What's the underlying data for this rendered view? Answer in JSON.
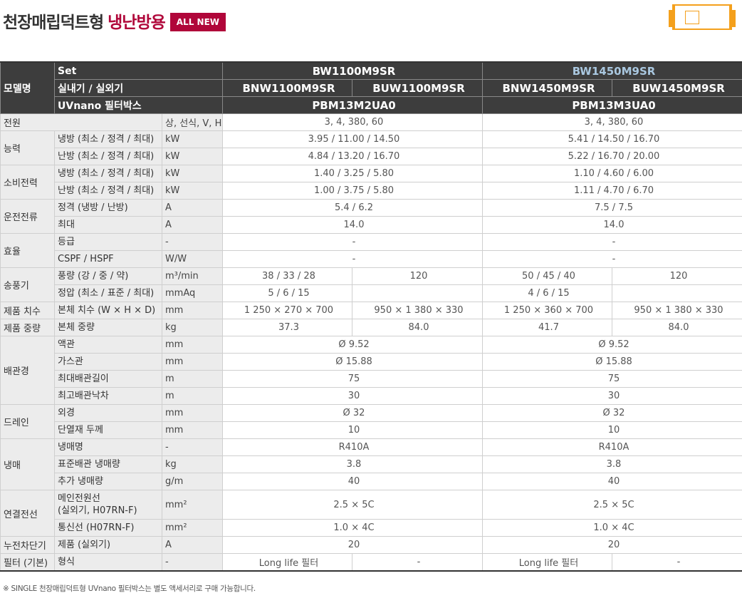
{
  "title": {
    "main": "천장매립덕트형",
    "accent": "냉난방용",
    "badge": "ALL NEW"
  },
  "header": {
    "model_label": "모델명",
    "set_label": "Set",
    "unit_label": "실내기 / 실외기",
    "filter_label": "UVnano 필터박스",
    "set_a": "BW1100M9SR",
    "set_b": "BW1450M9SR",
    "indoor_a": "BNW1100M9SR",
    "outdoor_a": "BUW1100M9SR",
    "indoor_b": "BNW1450M9SR",
    "outdoor_b": "BUW1450M9SR",
    "filter_a": "PBM13M2UA0",
    "filter_b": "PBM13M3UA0"
  },
  "rows": [
    {
      "cat": "전원",
      "item": "",
      "unit": "상, 선식, V, Hz",
      "a": "3, 4, 380, 60",
      "b": "3, 4, 380, 60"
    },
    {
      "cat": "능력",
      "item": "냉방 (최소 / 정격 / 최대)",
      "unit": "kW",
      "a": "3.95 / 11.00 / 14.50",
      "b": "5.41 / 14.50 / 16.70"
    },
    {
      "cat": "",
      "item": "난방 (최소 / 정격 / 최대)",
      "unit": "kW",
      "a": "4.84 / 13.20 / 16.70",
      "b": "5.22 / 16.70 / 20.00"
    },
    {
      "cat": "소비전력",
      "item": "냉방 (최소 / 정격 / 최대)",
      "unit": "kW",
      "a": "1.40 / 3.25 / 5.80",
      "b": "1.10 / 4.60 / 6.00"
    },
    {
      "cat": "",
      "item": "난방 (최소 / 정격 / 최대)",
      "unit": "kW",
      "a": "1.00 / 3.75 / 5.80",
      "b": "1.11 / 4.70 / 6.70"
    },
    {
      "cat": "운전전류",
      "item": "정격 (냉방 / 난방)",
      "unit": "A",
      "a": "5.4 / 6.2",
      "b": "7.5 / 7.5"
    },
    {
      "cat": "",
      "item": "최대",
      "unit": "A",
      "a": "14.0",
      "b": "14.0"
    },
    {
      "cat": "효율",
      "item": "등급",
      "unit": "-",
      "a": "-",
      "b": "-"
    },
    {
      "cat": "",
      "item": "CSPF / HSPF",
      "unit": "W/W",
      "a": "-",
      "b": "-"
    },
    {
      "cat": "송풍기",
      "item": "풍량 (강 / 중 / 약)",
      "unit": "m³/min",
      "a1": "38 / 33 / 28",
      "a2": "120",
      "b1": "50 / 45 / 40",
      "b2": "120"
    },
    {
      "cat": "",
      "item": "정압 (최소 / 표준 / 최대)",
      "unit": "mmAq",
      "a1": "5 / 6 / 15",
      "a2": "",
      "b1": "4 / 6 / 15",
      "b2": ""
    },
    {
      "cat": "제품 치수",
      "item": "본체 치수 (W × H × D)",
      "unit": "mm",
      "a1": "1 250 × 270 × 700",
      "a2": "950 × 1 380 × 330",
      "b1": "1 250 × 360 × 700",
      "b2": "950 × 1 380 × 330"
    },
    {
      "cat": "제품 중량",
      "item": "본체 중량",
      "unit": "kg",
      "a1": "37.3",
      "a2": "84.0",
      "b1": "41.7",
      "b2": "84.0"
    },
    {
      "cat": "배관경",
      "item": "액관",
      "unit": "mm",
      "a": "Ø 9.52",
      "b": "Ø 9.52"
    },
    {
      "cat": "",
      "item": "가스관",
      "unit": "mm",
      "a": "Ø 15.88",
      "b": "Ø 15.88"
    },
    {
      "cat": "",
      "item": "최대배관길이",
      "unit": "m",
      "a": "75",
      "b": "75"
    },
    {
      "cat": "",
      "item": "최고배관낙차",
      "unit": "m",
      "a": "30",
      "b": "30"
    },
    {
      "cat": "드레인",
      "item": "외경",
      "unit": "mm",
      "a": "Ø 32",
      "b": "Ø 32"
    },
    {
      "cat": "",
      "item": "단열재 두께",
      "unit": "mm",
      "a": "10",
      "b": "10"
    },
    {
      "cat": "냉매",
      "item": "냉매명",
      "unit": "-",
      "a": "R410A",
      "b": "R410A"
    },
    {
      "cat": "",
      "item": "표준배관 냉매량",
      "unit": "kg",
      "a": "3.8",
      "b": "3.8"
    },
    {
      "cat": "",
      "item": "추가 냉매량",
      "unit": "g/m",
      "a": "40",
      "b": "40"
    },
    {
      "cat": "연결전선",
      "item": "메인전원선\n(실외기, H07RN-F)",
      "unit": "mm²",
      "a": "2.5 × 5C",
      "b": "2.5 × 5C"
    },
    {
      "cat": "",
      "item": "통신선 (H07RN-F)",
      "unit": "mm²",
      "a": "1.0 × 4C",
      "b": "1.0 × 4C"
    },
    {
      "cat": "누전차단기",
      "item": "제품 (실외기)",
      "unit": "A",
      "a": "20",
      "b": "20"
    },
    {
      "cat": "필터 (기본)",
      "item": "형식",
      "unit": "-",
      "a1": "Long life 필터",
      "a2": "-",
      "b1": "Long life 필터",
      "b2": "-"
    }
  ],
  "note": "※ SINGLE 천장매립덕트형 UVnano 필터박스는 별도 액세서리로 구매 가능합니다."
}
